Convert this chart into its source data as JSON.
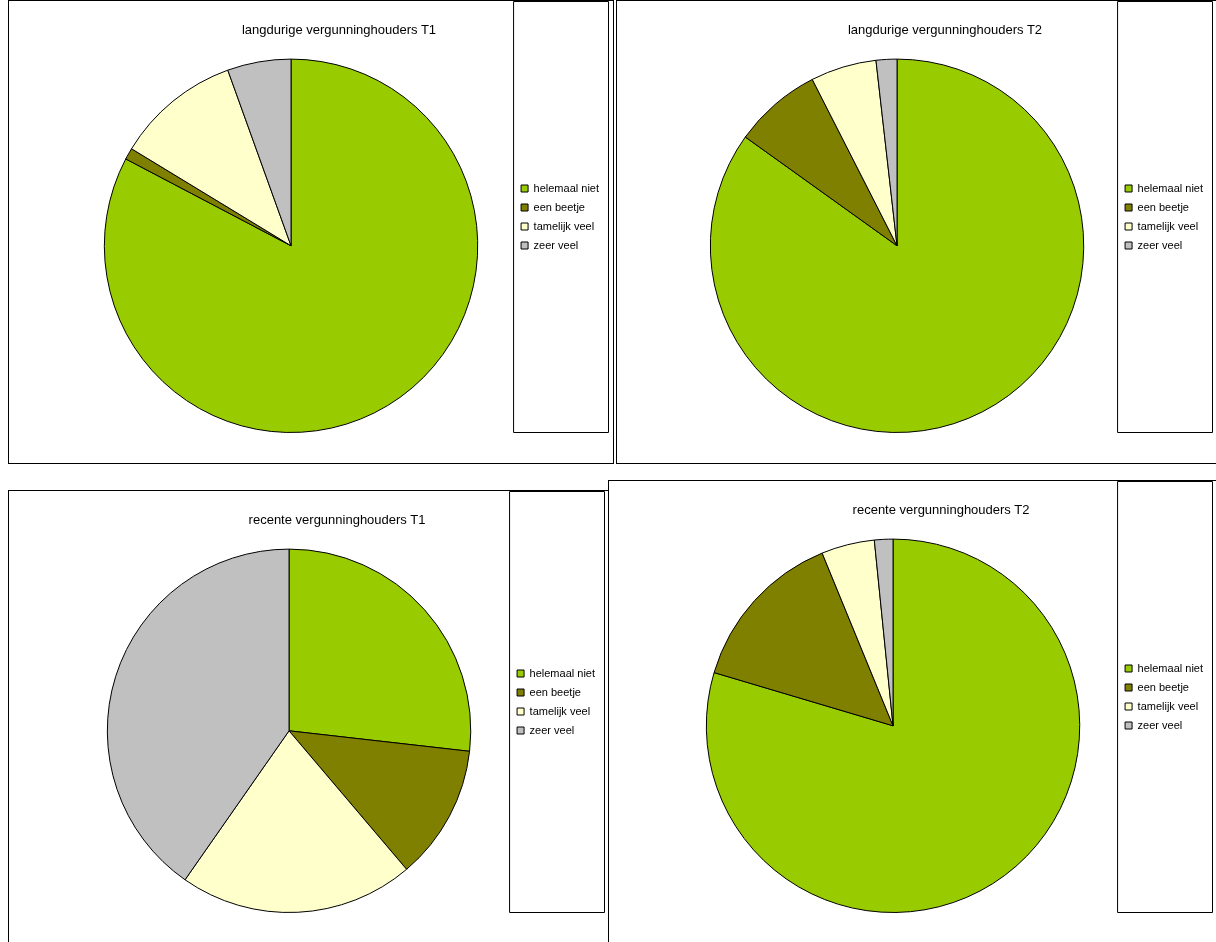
{
  "chart_data": [
    {
      "type": "pie",
      "title": "langdurige vergunninghouders T1",
      "categories": [
        "helemaal niet",
        "een beetje",
        "tamelijk veel",
        "zeer veel"
      ],
      "values": [
        82.7,
        1,
        10.8,
        5.5
      ],
      "colors": [
        "#99cc00",
        "#808000",
        "#ffffcc",
        "#c0c0c0"
      ],
      "legend": "right"
    },
    {
      "type": "pie",
      "title": "langdurige vergunninghouders T2",
      "categories": [
        "helemaal niet",
        "een beetje",
        "tamelijk veel",
        "zeer veel"
      ],
      "values": [
        84.9,
        7.6,
        5.7,
        1.8
      ],
      "colors": [
        "#99cc00",
        "#808000",
        "#ffffcc",
        "#c0c0c0"
      ],
      "legend": "right"
    },
    {
      "type": "pie",
      "title": "recente vergunninghouders T1",
      "categories": [
        "helemaal niet",
        "een beetje",
        "tamelijk veel",
        "zeer veel"
      ],
      "values": [
        26.8,
        12,
        20.9,
        40.3
      ],
      "colors": [
        "#99cc00",
        "#808000",
        "#ffffcc",
        "#c0c0c0"
      ],
      "legend": "right"
    },
    {
      "type": "pie",
      "title": "recente vergunninghouders T2",
      "categories": [
        "helemaal niet",
        "een beetje",
        "tamelijk veel",
        "zeer veel"
      ],
      "values": [
        79.6,
        14.2,
        4.6,
        1.6
      ],
      "colors": [
        "#99cc00",
        "#808000",
        "#ffffcc",
        "#c0c0c0"
      ],
      "legend": "right"
    }
  ]
}
